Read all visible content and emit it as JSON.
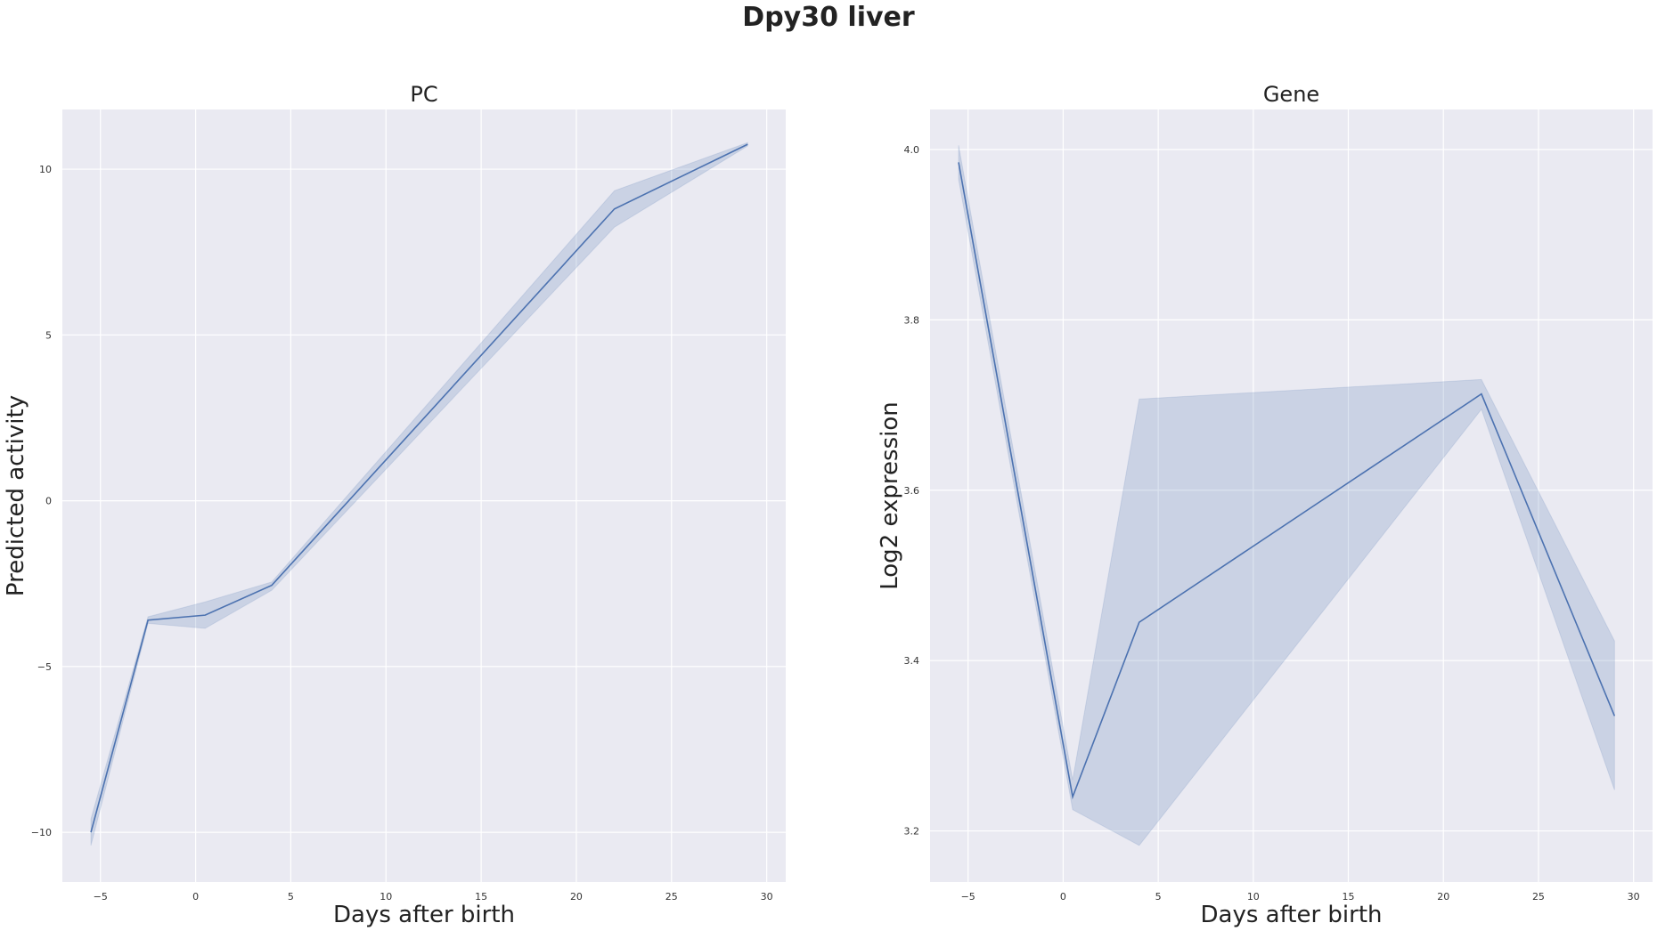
{
  "title": "Dpy30 liver",
  "chart_data": [
    {
      "type": "line",
      "title": "PC",
      "xlabel": "Days after birth",
      "ylabel": "Predicted activity",
      "xlim": [
        -7,
        31
      ],
      "ylim": [
        -11.5,
        11.8
      ],
      "xticks": [
        -5,
        0,
        5,
        10,
        15,
        20,
        25,
        30
      ],
      "yticks": [
        -10,
        -5,
        0,
        5,
        10
      ],
      "grid": true,
      "series": [
        {
          "x": [
            -5.5,
            -2.5,
            0.5,
            4,
            22,
            29
          ],
          "y": [
            -10.0,
            -3.6,
            -3.45,
            -2.55,
            8.8,
            10.75
          ],
          "ci_low": [
            -10.4,
            -3.7,
            -3.85,
            -2.7,
            8.25,
            10.7
          ],
          "ci_high": [
            -9.6,
            -3.5,
            -3.05,
            -2.45,
            9.35,
            10.8
          ]
        }
      ]
    },
    {
      "type": "line",
      "title": "Gene",
      "xlabel": "Days after birth",
      "ylabel": "Log2 expression",
      "xlim": [
        -7,
        31
      ],
      "ylim": [
        3.14,
        4.047
      ],
      "xticks": [
        -5,
        0,
        5,
        10,
        15,
        20,
        25,
        30
      ],
      "yticks": [
        3.2,
        3.4,
        3.6,
        3.8,
        4.0
      ],
      "grid": true,
      "series": [
        {
          "x": [
            -5.5,
            0.5,
            4,
            22,
            29
          ],
          "y": [
            3.985,
            3.24,
            3.445,
            3.713,
            3.335
          ],
          "ci_low": [
            3.965,
            3.225,
            3.183,
            3.695,
            3.248
          ],
          "ci_high": [
            4.005,
            3.26,
            3.707,
            3.73,
            3.423
          ]
        }
      ]
    }
  ]
}
